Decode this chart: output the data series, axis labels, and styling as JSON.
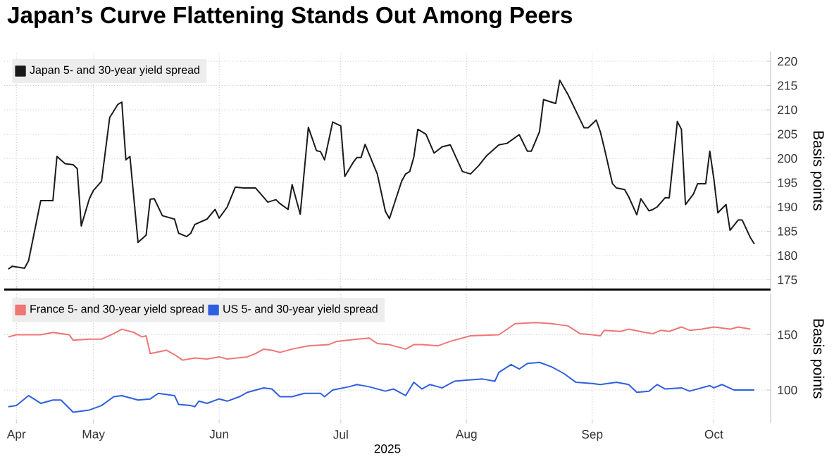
{
  "chart_data": [
    {
      "type": "line",
      "title": "Japan’s Curve Flattening Stands Out Among Peers",
      "ylabel": "Basis points",
      "xlim": [
        "2025-04-09",
        "2025-10-15"
      ],
      "xticks": [
        {
          "value": "2025-04-12",
          "label": null
        },
        {
          "value": "2025-05-01",
          "label": null
        },
        {
          "value": "2025-06-01",
          "label": null
        },
        {
          "value": "2025-07-01",
          "label": null
        },
        {
          "value": "2025-08-01",
          "label": null
        },
        {
          "value": "2025-09-01",
          "label": null
        },
        {
          "value": "2025-10-01",
          "label": null
        }
      ],
      "ylim": [
        173,
        222
      ],
      "yticks": [
        175,
        180,
        185,
        190,
        195,
        200,
        205,
        210,
        215,
        220
      ],
      "tick_labels": "y",
      "grid": true,
      "legend": "top left",
      "series": [
        {
          "name": "Japan 5- and 30-year yield spread",
          "color": "#1a1a1a",
          "x": [
            "2025-04-10",
            "2025-04-11",
            "2025-04-14",
            "2025-04-15",
            "2025-04-18",
            "2025-04-21",
            "2025-04-22",
            "2025-04-24",
            "2025-04-26",
            "2025-04-27",
            "2025-04-28",
            "2025-04-30",
            "2025-05-01",
            "2025-05-03",
            "2025-05-05",
            "2025-05-07",
            "2025-05-08",
            "2025-05-09",
            "2025-05-10",
            "2025-05-12",
            "2025-05-14",
            "2025-05-15",
            "2025-05-16",
            "2025-05-18",
            "2025-05-21",
            "2025-05-22",
            "2025-05-24",
            "2025-05-25",
            "2025-05-26",
            "2025-05-29",
            "2025-05-31",
            "2025-06-01",
            "2025-06-03",
            "2025-06-05",
            "2025-06-07",
            "2025-06-10",
            "2025-06-13",
            "2025-06-15",
            "2025-06-16",
            "2025-06-18",
            "2025-06-19",
            "2025-06-21",
            "2025-06-23",
            "2025-06-25",
            "2025-06-26",
            "2025-06-27",
            "2025-06-29",
            "2025-07-01",
            "2025-07-02",
            "2025-07-04",
            "2025-07-05",
            "2025-07-06",
            "2025-07-07",
            "2025-07-10",
            "2025-07-12",
            "2025-07-13",
            "2025-07-16",
            "2025-07-17",
            "2025-07-18",
            "2025-07-19",
            "2025-07-20",
            "2025-07-22",
            "2025-07-24",
            "2025-07-26",
            "2025-07-28",
            "2025-07-31",
            "2025-08-02",
            "2025-08-04",
            "2025-08-06",
            "2025-08-09",
            "2025-08-11",
            "2025-08-14",
            "2025-08-16",
            "2025-08-17",
            "2025-08-19",
            "2025-08-20",
            "2025-08-23",
            "2025-08-24",
            "2025-08-26",
            "2025-08-30",
            "2025-08-31",
            "2025-09-02",
            "2025-09-03",
            "2025-09-04",
            "2025-09-06",
            "2025-09-07",
            "2025-09-09",
            "2025-09-10",
            "2025-09-12",
            "2025-09-13",
            "2025-09-15",
            "2025-09-16",
            "2025-09-17",
            "2025-09-19",
            "2025-09-20",
            "2025-09-22",
            "2025-09-23",
            "2025-09-24",
            "2025-09-26",
            "2025-09-27",
            "2025-09-29",
            "2025-09-30",
            "2025-10-01",
            "2025-10-02",
            "2025-10-04",
            "2025-10-05",
            "2025-10-07",
            "2025-10-08",
            "2025-10-10",
            "2025-10-11"
          ],
          "values": [
            177.2,
            177.8,
            177.4,
            178.9,
            191.3,
            191.3,
            200.4,
            198.9,
            198.7,
            197.9,
            186.1,
            191.7,
            193.4,
            195.3,
            208.4,
            211.1,
            211.6,
            199.7,
            200.4,
            182.7,
            184.2,
            191.6,
            191.7,
            188.2,
            187.5,
            184.6,
            183.9,
            184.6,
            186.4,
            187.5,
            189.5,
            187.7,
            190.0,
            194.1,
            193.9,
            193.9,
            191.0,
            191.5,
            190.7,
            189.5,
            194.6,
            188.5,
            206.4,
            201.6,
            201.4,
            199.7,
            207.5,
            206.7,
            196.3,
            199.1,
            200.2,
            200.2,
            202.9,
            196.8,
            189.1,
            187.6,
            195.3,
            196.8,
            197.3,
            200.2,
            206.0,
            205.0,
            201.1,
            202.4,
            202.8,
            197.3,
            196.8,
            198.5,
            200.6,
            202.8,
            203.1,
            204.9,
            201.5,
            201.5,
            205.5,
            212.1,
            211.3,
            216.1,
            213.2,
            206.3,
            206.3,
            207.9,
            205.5,
            202.1,
            194.8,
            193.9,
            193.6,
            192.1,
            188.4,
            191.7,
            189.2,
            189.5,
            190.0,
            191.9,
            191.9,
            207.6,
            206.0,
            190.5,
            192.7,
            194.8,
            194.8,
            201.5,
            195.8,
            188.8,
            190.5,
            185.2,
            187.3,
            187.3,
            183.7,
            182.4
          ]
        }
      ]
    },
    {
      "type": "line",
      "xlabel": "2025",
      "ylabel": "Basis points",
      "xlim": [
        "2025-04-09",
        "2025-10-15"
      ],
      "xticks": [
        {
          "value": "2025-04-12",
          "label": "Apr"
        },
        {
          "value": "2025-05-01",
          "label": "May"
        },
        {
          "value": "2025-06-01",
          "label": "Jun"
        },
        {
          "value": "2025-07-01",
          "label": "Jul"
        },
        {
          "value": "2025-08-01",
          "label": "Aug"
        },
        {
          "value": "2025-09-01",
          "label": "Sep"
        },
        {
          "value": "2025-10-01",
          "label": "Oct"
        }
      ],
      "ylim": [
        70,
        187
      ],
      "yticks": [
        100,
        150
      ],
      "grid": true,
      "legend": "top left",
      "series": [
        {
          "name": "France 5- and 30-year yield spread",
          "color": "#f07575",
          "x": [
            "2025-04-10",
            "2025-04-12",
            "2025-04-18",
            "2025-04-21",
            "2025-04-25",
            "2025-04-26",
            "2025-04-30",
            "2025-05-03",
            "2025-05-06",
            "2025-05-08",
            "2025-05-11",
            "2025-05-13",
            "2025-05-14",
            "2025-05-15",
            "2025-05-19",
            "2025-05-21",
            "2025-05-23",
            "2025-05-26",
            "2025-05-29",
            "2025-06-01",
            "2025-06-03",
            "2025-06-08",
            "2025-06-10",
            "2025-06-12",
            "2025-06-14",
            "2025-06-16",
            "2025-06-19",
            "2025-06-23",
            "2025-06-28",
            "2025-06-30",
            "2025-07-05",
            "2025-07-08",
            "2025-07-10",
            "2025-07-13",
            "2025-07-17",
            "2025-07-19",
            "2025-07-21",
            "2025-07-25",
            "2025-07-28",
            "2025-08-02",
            "2025-08-09",
            "2025-08-13",
            "2025-08-18",
            "2025-08-22",
            "2025-08-26",
            "2025-08-29",
            "2025-09-01",
            "2025-09-03",
            "2025-09-04",
            "2025-09-08",
            "2025-09-10",
            "2025-09-14",
            "2025-09-16",
            "2025-09-18",
            "2025-09-20",
            "2025-09-23",
            "2025-09-25",
            "2025-09-28",
            "2025-10-01",
            "2025-10-05",
            "2025-10-07",
            "2025-10-10"
          ],
          "values": [
            148,
            150,
            150,
            152,
            150,
            145,
            146,
            146,
            151,
            155,
            152,
            148,
            149,
            133,
            136,
            132,
            127,
            129,
            128,
            130,
            128,
            130,
            133,
            137,
            136,
            134,
            137,
            140,
            141,
            144,
            146,
            147,
            142,
            141,
            137,
            141,
            141,
            140,
            144,
            149,
            150,
            160,
            161,
            160,
            158,
            151,
            150,
            149,
            154,
            153,
            155,
            152,
            151,
            154,
            153,
            157,
            154,
            155,
            157,
            155,
            157,
            155
          ]
        },
        {
          "name": "US 5- and 30-year yield spread",
          "color": "#2f5fe0",
          "x": [
            "2025-04-10",
            "2025-04-12",
            "2025-04-15",
            "2025-04-18",
            "2025-04-21",
            "2025-04-23",
            "2025-04-26",
            "2025-04-30",
            "2025-05-03",
            "2025-05-06",
            "2025-05-08",
            "2025-05-12",
            "2025-05-15",
            "2025-05-17",
            "2025-05-21",
            "2025-05-22",
            "2025-05-25",
            "2025-05-26",
            "2025-05-27",
            "2025-05-29",
            "2025-06-01",
            "2025-06-03",
            "2025-06-06",
            "2025-06-08",
            "2025-06-12",
            "2025-06-14",
            "2025-06-16",
            "2025-06-19",
            "2025-06-22",
            "2025-06-26",
            "2025-06-27",
            "2025-06-29",
            "2025-07-03",
            "2025-07-05",
            "2025-07-08",
            "2025-07-12",
            "2025-07-14",
            "2025-07-17",
            "2025-07-19",
            "2025-07-21",
            "2025-07-23",
            "2025-07-25",
            "2025-07-26",
            "2025-07-29",
            "2025-08-01",
            "2025-08-05",
            "2025-08-08",
            "2025-08-09",
            "2025-08-12",
            "2025-08-14",
            "2025-08-16",
            "2025-08-19",
            "2025-08-22",
            "2025-08-25",
            "2025-08-28",
            "2025-09-01",
            "2025-09-03",
            "2025-09-07",
            "2025-09-10",
            "2025-09-12",
            "2025-09-15",
            "2025-09-17",
            "2025-09-19",
            "2025-09-23",
            "2025-09-25",
            "2025-09-30",
            "2025-10-01",
            "2025-10-03",
            "2025-10-06",
            "2025-10-11"
          ],
          "values": [
            85,
            86,
            95,
            88,
            91,
            91,
            80,
            82,
            86,
            94,
            95,
            91,
            92,
            97,
            95,
            87,
            86,
            85,
            90,
            88,
            92,
            90,
            94,
            98,
            102,
            101,
            94,
            94,
            97,
            97,
            94,
            100,
            103,
            105,
            103,
            99,
            101,
            95,
            107,
            101,
            105,
            103,
            102,
            108,
            109,
            110,
            108,
            116,
            123,
            119,
            124,
            125,
            121,
            115,
            107,
            106,
            105,
            107,
            105,
            98,
            99,
            105,
            101,
            102,
            99,
            104,
            102,
            105,
            100,
            100
          ]
        }
      ]
    }
  ]
}
